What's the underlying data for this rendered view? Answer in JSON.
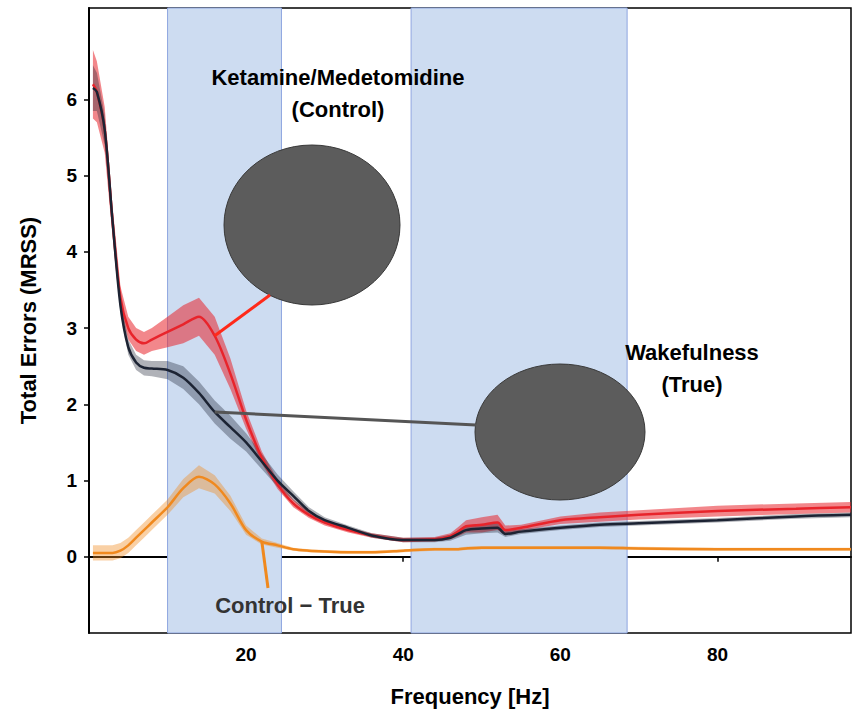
{
  "chart_data": {
    "type": "line",
    "x_label": "Frequency [Hz]",
    "y_label": "Total Errors (MRSS)",
    "xlim": [
      0,
      97
    ],
    "xticks": [
      20,
      40,
      60,
      80
    ],
    "ylim": [
      -1,
      7.2
    ],
    "yticks": [
      0,
      1,
      2,
      3,
      4,
      5,
      6
    ],
    "grid": false,
    "shaded_ranges": [
      [
        10,
        24.5
      ],
      [
        41,
        68.5
      ]
    ],
    "x": [
      0.5,
      1,
      2,
      3,
      4,
      5,
      6,
      7,
      8,
      10,
      12,
      14,
      16,
      18,
      20,
      22,
      24,
      26,
      28,
      30,
      33,
      36,
      40,
      44,
      46,
      47,
      48,
      50,
      52,
      53,
      55,
      60,
      65,
      70,
      80,
      90,
      97
    ],
    "series": [
      {
        "label": "Ketamine/Medetomidine\n(Control)",
        "color": "#e8242b",
        "values": [
          6.2,
          6.1,
          5.6,
          4.4,
          3.4,
          3.0,
          2.85,
          2.8,
          2.85,
          2.95,
          3.05,
          3.15,
          2.9,
          2.4,
          1.8,
          1.3,
          0.95,
          0.7,
          0.55,
          0.45,
          0.35,
          0.28,
          0.22,
          0.23,
          0.27,
          0.33,
          0.4,
          0.42,
          0.45,
          0.35,
          0.38,
          0.48,
          0.52,
          0.55,
          0.6,
          0.63,
          0.65
        ],
        "error": [
          0.45,
          0.4,
          0.3,
          0.2,
          0.15,
          0.15,
          0.15,
          0.15,
          0.15,
          0.2,
          0.25,
          0.25,
          0.25,
          0.2,
          0.12,
          0.08,
          0.06,
          0.05,
          0.04,
          0.04,
          0.03,
          0.03,
          0.03,
          0.03,
          0.04,
          0.06,
          0.08,
          0.1,
          0.1,
          0.06,
          0.04,
          0.05,
          0.06,
          0.06,
          0.07,
          0.07,
          0.07
        ]
      },
      {
        "label": "Wakefulness\n(True)",
        "color": "#1c2333",
        "values": [
          6.15,
          6.1,
          5.6,
          4.4,
          3.3,
          2.75,
          2.55,
          2.48,
          2.47,
          2.45,
          2.35,
          2.15,
          1.9,
          1.7,
          1.5,
          1.25,
          1.0,
          0.8,
          0.6,
          0.48,
          0.38,
          0.28,
          0.22,
          0.22,
          0.25,
          0.3,
          0.35,
          0.37,
          0.38,
          0.3,
          0.33,
          0.38,
          0.42,
          0.44,
          0.48,
          0.53,
          0.55
        ],
        "error": [
          0.3,
          0.25,
          0.2,
          0.12,
          0.1,
          0.1,
          0.1,
          0.1,
          0.1,
          0.12,
          0.15,
          0.15,
          0.15,
          0.15,
          0.12,
          0.1,
          0.08,
          0.06,
          0.05,
          0.04,
          0.03,
          0.03,
          0.03,
          0.03,
          0.04,
          0.05,
          0.06,
          0.06,
          0.06,
          0.04,
          0.03,
          0.03,
          0.03,
          0.03,
          0.03,
          0.03,
          0.03
        ]
      },
      {
        "label": "Control − True",
        "color": "#f0891e",
        "values": [
          0.05,
          0.05,
          0.05,
          0.05,
          0.08,
          0.15,
          0.25,
          0.35,
          0.45,
          0.65,
          0.9,
          1.05,
          0.95,
          0.7,
          0.35,
          0.2,
          0.15,
          0.1,
          0.08,
          0.07,
          0.06,
          0.06,
          0.08,
          0.1,
          0.1,
          0.1,
          0.11,
          0.12,
          0.12,
          0.12,
          0.12,
          0.12,
          0.12,
          0.11,
          0.1,
          0.1,
          0.1
        ],
        "error": [
          0.1,
          0.1,
          0.1,
          0.1,
          0.1,
          0.1,
          0.1,
          0.1,
          0.1,
          0.1,
          0.12,
          0.15,
          0.12,
          0.1,
          0.06,
          0.04,
          0.03,
          0.02,
          0.02,
          0.02,
          0.02,
          0.02,
          0.02,
          0.02,
          0.02,
          0.02,
          0.02,
          0.02,
          0.02,
          0.02,
          0.02,
          0.02,
          0.02,
          0.02,
          0.02,
          0.02,
          0.02
        ]
      }
    ]
  }
}
